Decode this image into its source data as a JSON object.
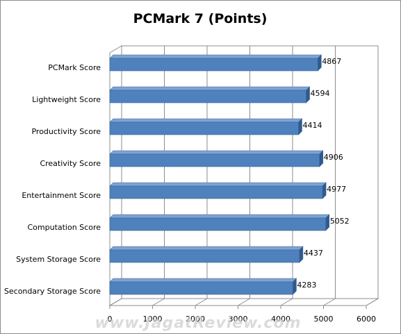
{
  "watermark": "www.JagatReview.com",
  "colors": {
    "bar_front": "#4f81bd",
    "bar_top": "#7ea3d4",
    "bar_side": "#2f5a8e",
    "bar_stroke": "#3a6496",
    "grid": "#8c8c8c",
    "wall": "#8c8c8c"
  },
  "chart_data": {
    "type": "bar",
    "orientation": "horizontal",
    "style": "3d-clustered",
    "title": "PCMark 7 (Points)",
    "xlabel": "",
    "ylabel": "",
    "xlim": [
      0,
      6000
    ],
    "x_ticks": [
      0,
      1000,
      2000,
      3000,
      4000,
      5000,
      6000
    ],
    "categories": [
      "PCMark Score",
      "Lightweight Score",
      "Productivity Score",
      "Creativity Score",
      "Entertainment Score",
      "Computation Score",
      "System Storage Score",
      "Secondary Storage Score"
    ],
    "values": [
      4867,
      4594,
      4414,
      4906,
      4977,
      5052,
      4437,
      4283
    ],
    "data_labels": [
      "4867",
      "4594",
      "4414",
      "4906",
      "4977",
      "5052",
      "4437",
      "4283"
    ],
    "grid": "vertical-major",
    "legend": "none"
  }
}
